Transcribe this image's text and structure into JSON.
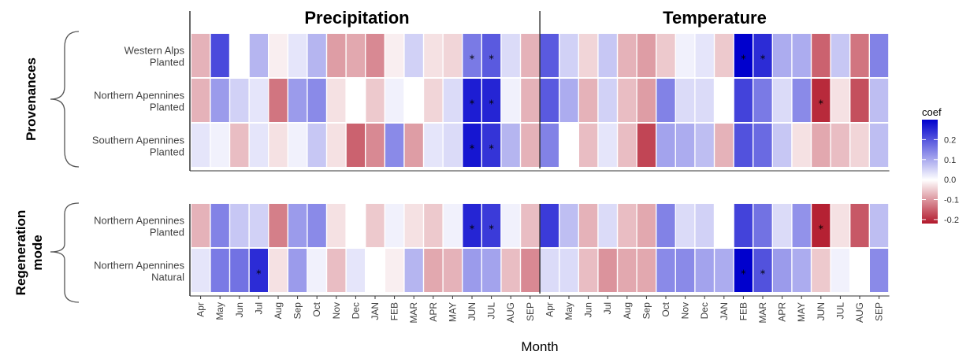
{
  "chart_data": {
    "type": "heatmap",
    "xlabel": "Month",
    "columns": [
      "Apr",
      "May",
      "Jun",
      "Jul",
      "Aug",
      "Sep",
      "Oct",
      "Nov",
      "Dec",
      "JAN",
      "FEB",
      "MAR",
      "APR",
      "MAY",
      "JUN",
      "JUL",
      "AUG",
      "SEP"
    ],
    "variables": [
      "Precipitation",
      "Temperature"
    ],
    "legend": {
      "title": "coef",
      "ticks": [
        0.2,
        0.1,
        0.0,
        -0.1,
        -0.2
      ],
      "range": [
        -0.22,
        0.3
      ],
      "position": "right",
      "colors": {
        "low": "#b2182b",
        "mid": "#ffffff",
        "high": "#0000cd"
      }
    },
    "panels": [
      {
        "group": "Provenances",
        "rows": [
          {
            "label1": "Western Alps",
            "label2": "Planted",
            "precipitation": [
              -0.06,
              0.2,
              0.0,
              0.07,
              -0.01,
              0.02,
              0.07,
              -0.08,
              -0.07,
              -0.1,
              -0.01,
              0.04,
              -0.02,
              -0.03,
              0.14,
              0.18,
              0.03,
              -0.06
            ],
            "temperature": [
              0.18,
              0.04,
              -0.03,
              0.05,
              -0.06,
              -0.08,
              -0.04,
              0.01,
              0.02,
              -0.04,
              0.3,
              0.24,
              0.08,
              0.08,
              -0.14,
              0.05,
              -0.12,
              0.13
            ],
            "precipitation_sig": [
              14,
              15
            ],
            "temperature_sig": [
              10,
              11
            ]
          },
          {
            "label1": "Northern Apennines",
            "label2": "Planted",
            "precipitation": [
              -0.06,
              0.1,
              0.04,
              0.02,
              -0.12,
              0.1,
              0.12,
              -0.02,
              0.0,
              -0.04,
              0.01,
              0.0,
              -0.03,
              0.03,
              0.26,
              0.25,
              0.01,
              -0.06
            ],
            "temperature": [
              0.18,
              0.08,
              -0.06,
              0.04,
              -0.05,
              -0.08,
              0.13,
              0.03,
              0.03,
              0.0,
              0.21,
              0.14,
              0.03,
              0.12,
              -0.2,
              -0.02,
              -0.16,
              0.06
            ],
            "precipitation_sig": [
              14,
              15
            ],
            "temperature_sig": [
              14
            ]
          },
          {
            "label1": "Southern Apennines",
            "label2": "Planted",
            "precipitation": [
              0.02,
              0.01,
              -0.05,
              0.02,
              -0.02,
              0.01,
              0.05,
              -0.02,
              -0.14,
              -0.1,
              0.12,
              -0.08,
              0.02,
              0.03,
              0.27,
              0.23,
              0.07,
              -0.06
            ],
            "temperature": [
              0.13,
              0.0,
              -0.05,
              0.02,
              -0.05,
              -0.17,
              0.09,
              0.08,
              0.06,
              -0.06,
              0.19,
              0.16,
              0.05,
              -0.02,
              -0.07,
              -0.05,
              -0.03,
              0.06
            ],
            "precipitation_sig": [
              14,
              15
            ],
            "temperature_sig": []
          }
        ]
      },
      {
        "group": "Regeneration mode",
        "rows": [
          {
            "label1": "Northern Apennines",
            "label2": "Planted",
            "precipitation": [
              -0.06,
              0.13,
              0.05,
              0.04,
              -0.11,
              0.1,
              0.12,
              -0.02,
              0.0,
              -0.04,
              0.01,
              -0.02,
              -0.04,
              0.01,
              0.25,
              0.22,
              0.01,
              -0.05
            ],
            "temperature": [
              0.22,
              0.06,
              -0.06,
              0.03,
              -0.05,
              -0.07,
              0.13,
              0.03,
              0.04,
              0.0,
              0.21,
              0.15,
              0.03,
              0.11,
              -0.21,
              -0.02,
              -0.15,
              0.06
            ],
            "precipitation_sig": [
              14,
              15
            ],
            "temperature_sig": [
              14
            ]
          },
          {
            "label1": "Northern Apennines",
            "label2": "Natural",
            "precipitation": [
              0.02,
              0.14,
              0.15,
              0.24,
              -0.02,
              0.1,
              0.01,
              -0.05,
              0.02,
              0.0,
              -0.01,
              0.07,
              -0.07,
              -0.06,
              0.1,
              0.09,
              -0.05,
              -0.1
            ],
            "temperature": [
              0.03,
              0.03,
              -0.05,
              -0.09,
              -0.07,
              -0.07,
              0.12,
              0.12,
              0.09,
              0.08,
              0.3,
              0.19,
              0.1,
              0.08,
              -0.04,
              0.01,
              0.0,
              0.12
            ],
            "precipitation_sig": [
              3
            ],
            "temperature_sig": [
              10,
              11
            ]
          }
        ]
      }
    ]
  },
  "labels": {
    "title_left": "Precipitation",
    "title_right": "Temperature",
    "group1_line1": "Provenances",
    "group2_line1": "Regeneration",
    "group2_line2": "mode",
    "legend_title": "coef",
    "xlabel": "Month"
  }
}
